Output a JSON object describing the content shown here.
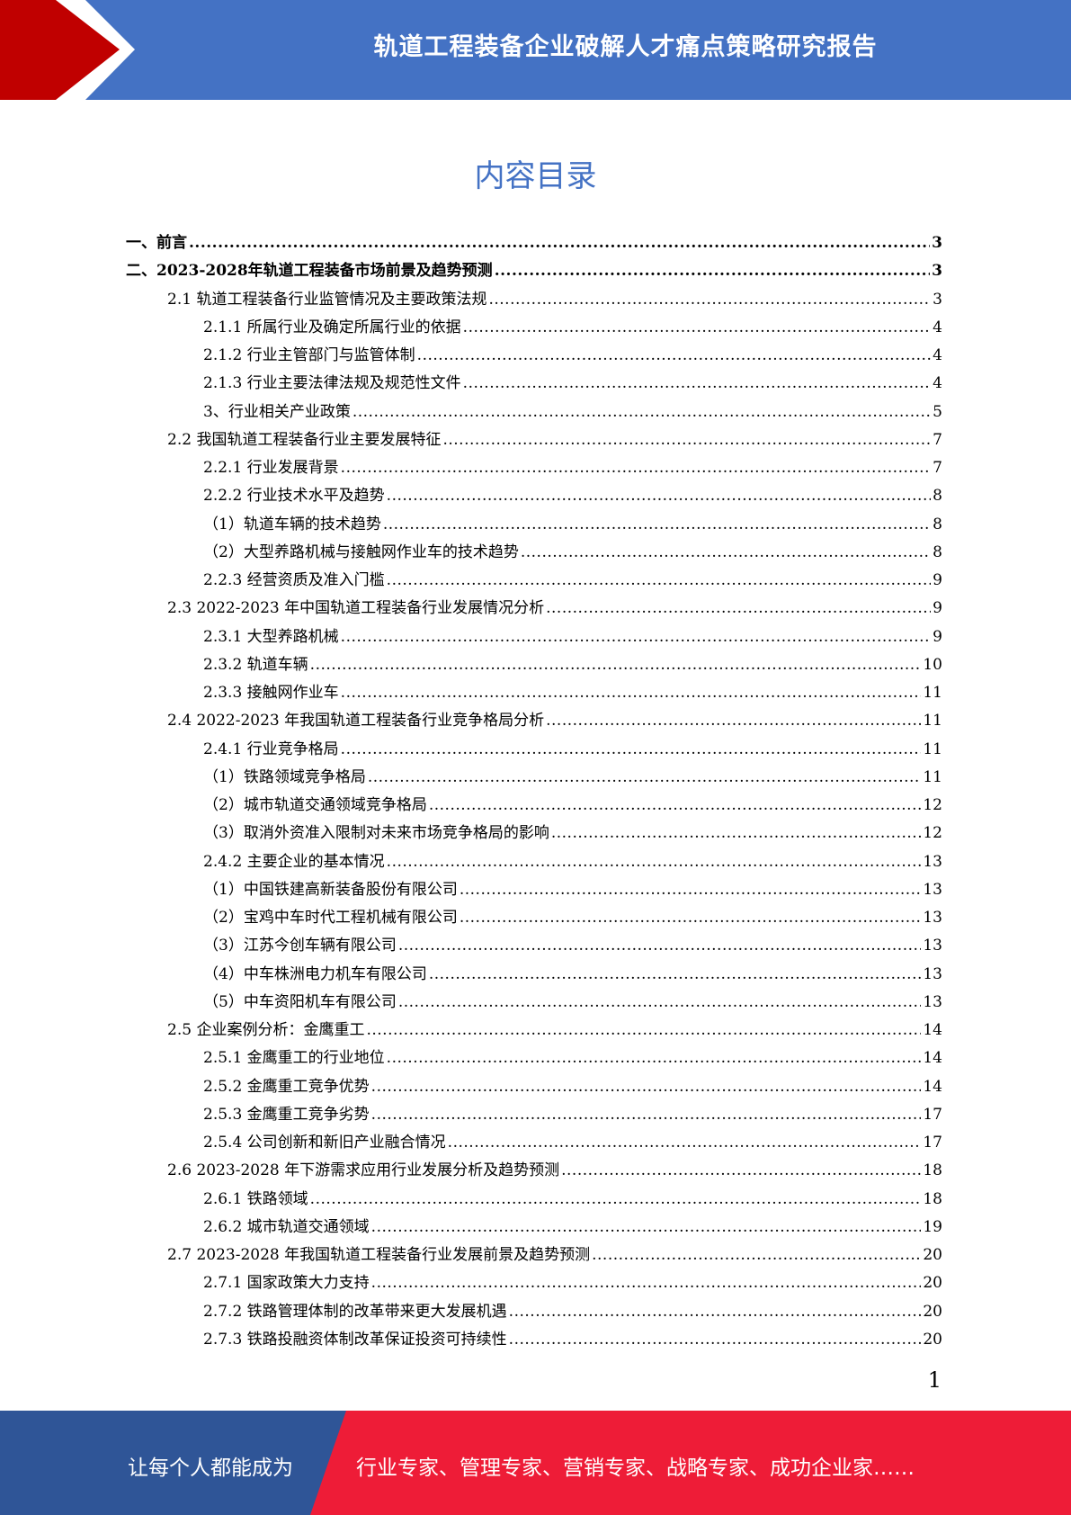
{
  "header": {
    "title": "轨道工程装备企业破解人才痛点策略研究报告"
  },
  "toc_title": "内容目录",
  "toc": [
    {
      "level": 0,
      "label": "一、前言",
      "page": "3"
    },
    {
      "level": 0,
      "label": "二、2023-2028年轨道工程装备市场前景及趋势预测",
      "page": "3"
    },
    {
      "level": 1,
      "label": "2.1  轨道工程装备行业监管情况及主要政策法规",
      "page": "3"
    },
    {
      "level": 2,
      "label": "2.1.1  所属行业及确定所属行业的依据",
      "page": "4"
    },
    {
      "level": 2,
      "label": "2.1.2  行业主管部门与监管体制",
      "page": "4"
    },
    {
      "level": 2,
      "label": "2.1.3  行业主要法律法规及规范性文件",
      "page": "4"
    },
    {
      "level": 2,
      "label": "3、行业相关产业政策",
      "page": "5"
    },
    {
      "level": 1,
      "label": "2.2  我国轨道工程装备行业主要发展特征",
      "page": "7"
    },
    {
      "level": 2,
      "label": "2.2.1  行业发展背景",
      "page": "7"
    },
    {
      "level": 2,
      "label": "2.2.2  行业技术水平及趋势",
      "page": "8"
    },
    {
      "level": 3,
      "label": "（1）轨道车辆的技术趋势",
      "page": "8"
    },
    {
      "level": 3,
      "label": "（2）大型养路机械与接触网作业车的技术趋势",
      "page": "8"
    },
    {
      "level": 2,
      "label": "2.2.3  经营资质及准入门槛",
      "page": "9"
    },
    {
      "level": 1,
      "label": "2.3 2022-2023 年中国轨道工程装备行业发展情况分析",
      "page": "9"
    },
    {
      "level": 2,
      "label": "2.3.1  大型养路机械",
      "page": "9"
    },
    {
      "level": 2,
      "label": "2.3.2  轨道车辆",
      "page": "10"
    },
    {
      "level": 2,
      "label": "2.3.3  接触网作业车",
      "page": "11"
    },
    {
      "level": 1,
      "label": "2.4 2022-2023 年我国轨道工程装备行业竞争格局分析",
      "page": "11"
    },
    {
      "level": 2,
      "label": "2.4.1  行业竞争格局",
      "page": "11"
    },
    {
      "level": 3,
      "label": "（1）铁路领域竞争格局",
      "page": "11"
    },
    {
      "level": 3,
      "label": "（2）城市轨道交通领域竞争格局",
      "page": "12"
    },
    {
      "level": 3,
      "label": "（3）取消外资准入限制对未来市场竞争格局的影响",
      "page": "12"
    },
    {
      "level": 2,
      "label": "2.4.2  主要企业的基本情况",
      "page": "13"
    },
    {
      "level": 3,
      "label": "（1）中国铁建高新装备股份有限公司",
      "page": "13"
    },
    {
      "level": 3,
      "label": "（2）宝鸡中车时代工程机械有限公司",
      "page": "13"
    },
    {
      "level": 3,
      "label": "（3）江苏今创车辆有限公司",
      "page": "13"
    },
    {
      "level": 3,
      "label": "（4）中车株洲电力机车有限公司",
      "page": "13"
    },
    {
      "level": 3,
      "label": "（5）中车资阳机车有限公司",
      "page": "13"
    },
    {
      "level": 1,
      "label": "2.5  企业案例分析：金鹰重工",
      "page": "14"
    },
    {
      "level": 2,
      "label": "2.5.1  金鹰重工的行业地位",
      "page": "14"
    },
    {
      "level": 2,
      "label": "2.5.2  金鹰重工竞争优势",
      "page": "14"
    },
    {
      "level": 2,
      "label": "2.5.3  金鹰重工竞争劣势",
      "page": "17"
    },
    {
      "level": 2,
      "label": "2.5.4  公司创新和新旧产业融合情况",
      "page": "17"
    },
    {
      "level": 1,
      "label": "2.6 2023-2028 年下游需求应用行业发展分析及趋势预测",
      "page": "18"
    },
    {
      "level": 2,
      "label": "2.6.1  铁路领域",
      "page": "18"
    },
    {
      "level": 2,
      "label": "2.6.2  城市轨道交通领域",
      "page": "19"
    },
    {
      "level": 1,
      "label": "2.7 2023-2028 年我国轨道工程装备行业发展前景及趋势预测",
      "page": "20"
    },
    {
      "level": 2,
      "label": "2.7.1  国家政策大力支持",
      "page": "20"
    },
    {
      "level": 2,
      "label": "2.7.2  铁路管理体制的改革带来更大发展机遇",
      "page": "20"
    },
    {
      "level": 2,
      "label": "2.7.3  铁路投融资体制改革保证投资可持续性",
      "page": "20"
    }
  ],
  "page_number": "1",
  "footer": {
    "left": "让每个人都能成为",
    "right": "行业专家、管理专家、营销专家、战略专家、成功企业家……"
  },
  "colors": {
    "header_blue": "#4472c4",
    "chevron_red": "#c00000",
    "footer_blue": "#2f5597",
    "footer_red": "#ee1c37"
  }
}
